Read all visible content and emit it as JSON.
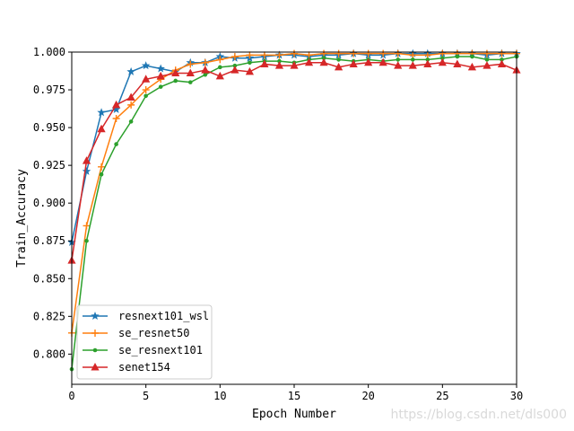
{
  "chart_data": {
    "type": "line",
    "title": "",
    "xlabel": "Epoch Number",
    "ylabel": "Train_Accuracy",
    "xlim": [
      0,
      30
    ],
    "ylim": [
      0.78,
      1.0
    ],
    "xticks": [
      "0",
      "5",
      "10",
      "15",
      "20",
      "25",
      "30"
    ],
    "yticks": [
      "0.800",
      "0.825",
      "0.850",
      "0.875",
      "0.900",
      "0.925",
      "0.950",
      "0.975",
      "1.000"
    ],
    "grid": false,
    "legend_position": "lower-left",
    "x": [
      0,
      1,
      2,
      3,
      4,
      5,
      6,
      7,
      8,
      9,
      10,
      11,
      12,
      13,
      14,
      15,
      16,
      17,
      18,
      19,
      20,
      21,
      22,
      23,
      24,
      25,
      26,
      27,
      28,
      29,
      30
    ],
    "series": [
      {
        "name": "resnext101_wsl",
        "color": "#1f77b4",
        "marker": "star",
        "values": [
          0.874,
          0.921,
          0.96,
          0.962,
          0.987,
          0.991,
          0.989,
          0.987,
          0.993,
          0.993,
          0.997,
          0.996,
          0.996,
          0.997,
          0.998,
          0.998,
          0.997,
          0.998,
          0.998,
          0.999,
          0.998,
          0.998,
          0.999,
          0.999,
          0.999,
          0.999,
          0.999,
          0.999,
          0.998,
          0.999,
          0.999
        ]
      },
      {
        "name": "se_resnet50",
        "color": "#ff7f0e",
        "marker": "plus",
        "values": [
          0.814,
          0.885,
          0.924,
          0.956,
          0.965,
          0.975,
          0.982,
          0.988,
          0.992,
          0.993,
          0.995,
          0.997,
          0.998,
          0.998,
          0.998,
          0.999,
          0.998,
          0.999,
          0.999,
          0.999,
          0.999,
          0.999,
          0.999,
          0.998,
          0.998,
          0.999,
          0.999,
          0.999,
          0.999,
          0.999,
          0.999
        ]
      },
      {
        "name": "se_resnext101",
        "color": "#2ca02c",
        "marker": "circle",
        "values": [
          0.79,
          0.875,
          0.919,
          0.939,
          0.954,
          0.971,
          0.977,
          0.981,
          0.98,
          0.985,
          0.99,
          0.991,
          0.993,
          0.994,
          0.994,
          0.993,
          0.995,
          0.996,
          0.995,
          0.994,
          0.995,
          0.994,
          0.995,
          0.995,
          0.995,
          0.996,
          0.997,
          0.997,
          0.995,
          0.995,
          0.997
        ]
      },
      {
        "name": "senet154",
        "color": "#d62728",
        "marker": "triangle",
        "values": [
          0.862,
          0.928,
          0.949,
          0.965,
          0.97,
          0.982,
          0.984,
          0.986,
          0.986,
          0.988,
          0.984,
          0.988,
          0.987,
          0.992,
          0.991,
          0.991,
          0.993,
          0.993,
          0.99,
          0.992,
          0.993,
          0.993,
          0.991,
          0.991,
          0.992,
          0.993,
          0.992,
          0.99,
          0.991,
          0.992,
          0.988
        ]
      }
    ]
  },
  "watermark": "https://blog.csdn.net/dls000"
}
